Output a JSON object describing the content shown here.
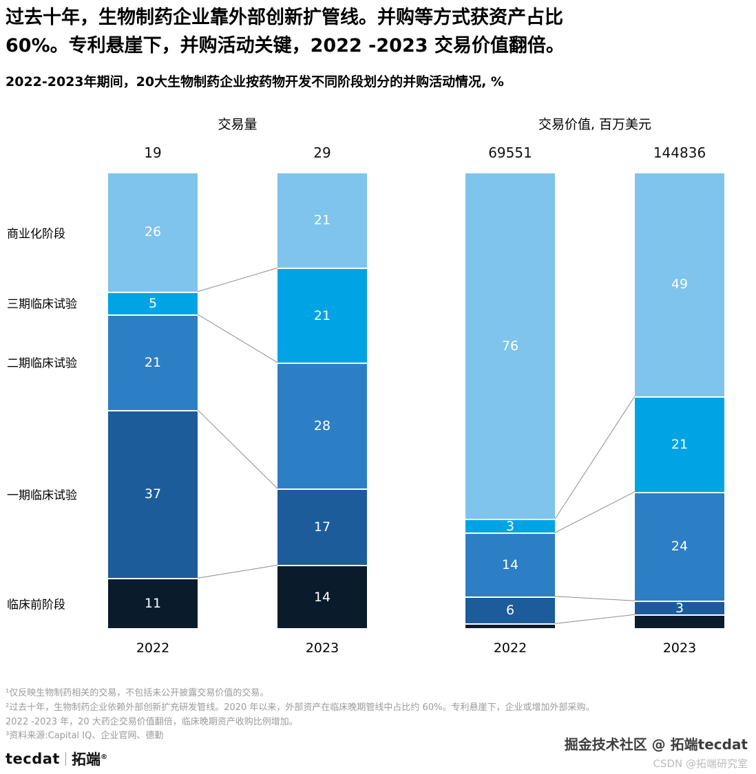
{
  "header": {
    "title": "过去十年，生物制药企业靠外部创新扩管线。并购等方式获资产占比\n60%。专利悬崖下，并购活动关键，2022 -2023 交易价值翻倍。",
    "subtitle": "2022-2023年期间，20大生物制药企业按药物开发不同阶段划分的并购活动情况, %"
  },
  "chart_data": {
    "type": "bar",
    "variant": "stacked-100-percent",
    "legend_position": "left-axis-labels",
    "grid": false,
    "stages": [
      {
        "name": "商业化阶段",
        "color": "#7EC4EC"
      },
      {
        "name": "三期临床试验",
        "color": "#00A4E4"
      },
      {
        "name": "二期临床试验",
        "color": "#2C7FC4"
      },
      {
        "name": "一期临床试验",
        "color": "#1C5C9B"
      },
      {
        "name": "临床前阶段",
        "color": "#0A1C2B"
      }
    ],
    "charts": [
      {
        "title": "交易量",
        "categories": [
          "2022",
          "2023"
        ],
        "totals": [
          "19",
          "29"
        ],
        "series": [
          {
            "category": "2022",
            "values": [
              26,
              5,
              21,
              37,
              11
            ],
            "labels": [
              "26",
              "5",
              "21",
              "37",
              "11"
            ]
          },
          {
            "category": "2023",
            "values": [
              21,
              21,
              28,
              17,
              14
            ],
            "labels": [
              "21",
              "21",
              "28",
              "17",
              "14"
            ]
          }
        ]
      },
      {
        "title": "交易价值, 百万美元",
        "categories": [
          "2022",
          "2023"
        ],
        "totals": [
          "69551",
          "144836"
        ],
        "series": [
          {
            "category": "2022",
            "values": [
              76,
              3,
              14,
              6,
              1
            ],
            "labels": [
              "76",
              "3",
              "14",
              "6",
              null
            ]
          },
          {
            "category": "2023",
            "values": [
              49,
              21,
              24,
              3,
              3
            ],
            "labels": [
              "49",
              "21",
              "24",
              "3",
              null
            ]
          }
        ]
      }
    ]
  },
  "footnotes": [
    "¹仅反映生物制药相关的交易，不包括未公开披露交易价值的交易。",
    "²过去十年，生物制药企业依赖外部创新扩充研发管线。2020 年以来，外部资产在临床晚期管线中占比约 60%。专利悬崖下，企业或增加外部采购。\n2022 -2023 年，20 大药企交易价值翻倍，临床晚期资产收购比例增加。",
    "³资料来源:Capital IQ、企业官网、德勤"
  ],
  "brand": {
    "en": "tecdat",
    "cn": "拓端",
    "reg": "®"
  },
  "watermark": {
    "line1": "掘金技术社区 @ 拓端tecdat",
    "line2": "CSDN @拓端研究室"
  }
}
